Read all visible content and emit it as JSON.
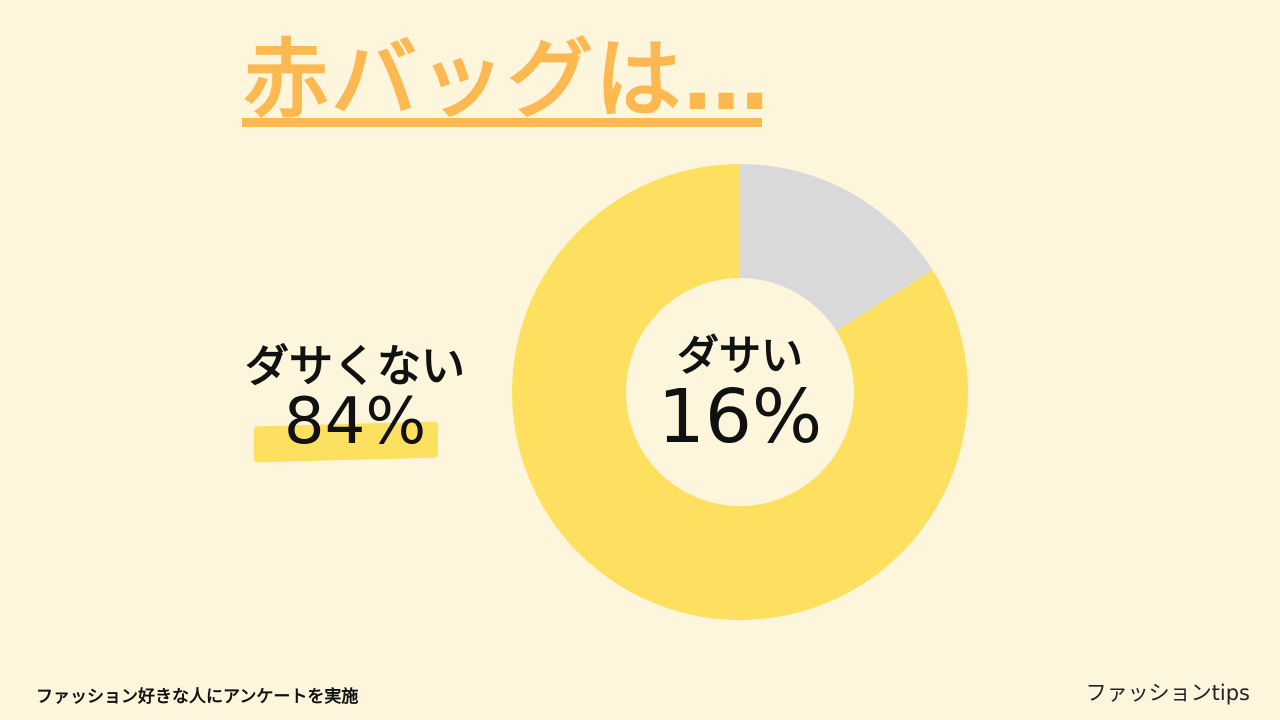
{
  "title": "赤バッグは…",
  "chart_data": {
    "type": "pie",
    "slices": [
      {
        "label": "ダサい",
        "value": 16,
        "display": "16%",
        "color": "#d9d9d9"
      },
      {
        "label": "ダサくない",
        "value": 84,
        "display": "84%",
        "color": "#fde05f"
      }
    ]
  },
  "footnote": "ファッション好きな人にアンケートを実施",
  "brand": "ファッションtips"
}
